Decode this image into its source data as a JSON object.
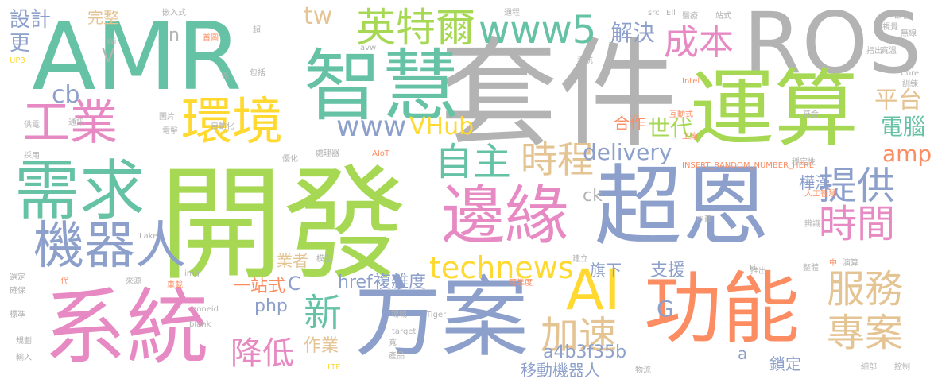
{
  "palette": {
    "green": "#66c2a5",
    "orange": "#fc8d62",
    "blue": "#8da0cb",
    "pink": "#e78ac3",
    "lime": "#a6d854",
    "yellow": "#ffd92f",
    "tan": "#e5c494",
    "gray": "#b3b3b3"
  },
  "words": [
    {
      "text": "開發",
      "color": "#a6d854"
    },
    {
      "text": "套件",
      "color": "#b3b3b3"
    },
    {
      "text": "AMR",
      "color": "#66c2a5"
    },
    {
      "text": "ROS",
      "color": "#b3b3b3"
    },
    {
      "text": "智慧",
      "color": "#66c2a5"
    },
    {
      "text": "運算",
      "color": "#a6d854"
    },
    {
      "text": "超恩",
      "color": "#8da0cb"
    },
    {
      "text": "系統",
      "color": "#e78ac3"
    },
    {
      "text": "方案",
      "color": "#8da0cb"
    },
    {
      "text": "功能",
      "color": "#fc8d62"
    },
    {
      "text": "需求",
      "color": "#66c2a5"
    },
    {
      "text": "工業",
      "color": "#e78ac3"
    },
    {
      "text": "環境",
      "color": "#ffd92f"
    },
    {
      "text": "邊緣",
      "color": "#e78ac3"
    },
    {
      "text": "機器人",
      "color": "#8da0cb"
    },
    {
      "text": "英特爾",
      "color": "#a6d854"
    },
    {
      "text": "www5",
      "color": "#66c2a5"
    },
    {
      "text": "成本",
      "color": "#e78ac3"
    },
    {
      "text": "AI",
      "color": "#ffd92f"
    },
    {
      "text": "自主",
      "color": "#66c2a5"
    },
    {
      "text": "時程",
      "color": "#e5c494"
    },
    {
      "text": "提供",
      "color": "#8da0cb"
    },
    {
      "text": "時間",
      "color": "#e78ac3"
    },
    {
      "text": "服務",
      "color": "#e5c494"
    },
    {
      "text": "專案",
      "color": "#e5c494"
    },
    {
      "text": "technews",
      "color": "#ffd92f"
    },
    {
      "text": "新",
      "color": "#66c2a5"
    },
    {
      "text": "加速",
      "color": "#e5c494"
    },
    {
      "text": "降低",
      "color": "#e78ac3"
    },
    {
      "text": "www",
      "color": "#8da0cb"
    },
    {
      "text": "VHub",
      "color": "#ffd92f"
    },
    {
      "text": "delivery",
      "color": "#8da0cb"
    },
    {
      "text": "解決",
      "color": "#8da0cb"
    },
    {
      "text": "平台",
      "color": "#e5c494"
    },
    {
      "text": "世代",
      "color": "#a6d854"
    },
    {
      "text": "合作",
      "color": "#fc8d62"
    },
    {
      "text": "電腦",
      "color": "#66c2a5"
    },
    {
      "text": "amp",
      "color": "#fc8d62"
    },
    {
      "text": "設計",
      "color": "#8da0cb"
    },
    {
      "text": "更",
      "color": "#8da0cb"
    },
    {
      "text": "完整",
      "color": "#e5c494"
    },
    {
      "text": "tw",
      "color": "#e5c494"
    },
    {
      "text": "cb",
      "color": "#8da0cb"
    },
    {
      "text": "V",
      "color": "#b3b3b3"
    },
    {
      "text": "n",
      "color": "#b3b3b3"
    },
    {
      "text": "ck",
      "color": "#b3b3b3"
    },
    {
      "text": "樺漢",
      "color": "#8da0cb"
    },
    {
      "text": "業者",
      "color": "#e5c494"
    },
    {
      "text": "一站式",
      "color": "#fc8d62"
    },
    {
      "text": "C",
      "color": "#8da0cb"
    },
    {
      "text": "php",
      "color": "#8da0cb"
    },
    {
      "text": "href",
      "color": "#8da0cb"
    },
    {
      "text": "複雜度",
      "color": "#8da0cb"
    },
    {
      "text": "旗下",
      "color": "#8da0cb"
    },
    {
      "text": "支援",
      "color": "#8da0cb"
    },
    {
      "text": "G",
      "color": "#8da0cb"
    },
    {
      "text": "作業",
      "color": "#e5c494"
    },
    {
      "text": "移動機器人",
      "color": "#8da0cb"
    },
    {
      "text": "a4b3f35b",
      "color": "#8da0cb"
    },
    {
      "text": "鎖定",
      "color": "#8da0cb"
    },
    {
      "text": "a",
      "color": "#8da0cb"
    },
    {
      "text": "嵌入式",
      "color": "#b3b3b3"
    },
    {
      "text": "超",
      "color": "#b3b3b3"
    },
    {
      "text": "Wi",
      "color": "#b3b3b3"
    },
    {
      "text": "UP3",
      "color": "#ffd92f"
    },
    {
      "text": "avw",
      "color": "#b3b3b3"
    },
    {
      "text": "導航",
      "color": "#b3b3b3"
    },
    {
      "text": "Intel",
      "color": "#fc8d62"
    },
    {
      "text": "包括",
      "color": "#b3b3b3"
    },
    {
      "text": "先",
      "color": "#b3b3b3"
    },
    {
      "text": "首圖",
      "color": "#fc8d62"
    },
    {
      "text": "通程",
      "color": "#b3b3b3"
    },
    {
      "text": "src",
      "color": "#b3b3b3"
    },
    {
      "text": "Ell",
      "color": "#b3b3b3"
    },
    {
      "text": "醫療",
      "color": "#b3b3b3"
    },
    {
      "text": "站式",
      "color": "#b3b3b3"
    },
    {
      "text": "節省",
      "color": "#b3b3b3"
    },
    {
      "text": "視覺",
      "color": "#b3b3b3"
    },
    {
      "text": "無線",
      "color": "#b3b3b3"
    },
    {
      "text": "寬溫",
      "color": "#b3b3b3"
    },
    {
      "text": "指出",
      "color": "#b3b3b3"
    },
    {
      "text": "Core",
      "color": "#b3b3b3"
    },
    {
      "text": "訓練",
      "color": "#b3b3b3"
    },
    {
      "text": "互動式",
      "color": "#fc8d62"
    },
    {
      "text": "符合",
      "color": "#b3b3b3"
    },
    {
      "text": "工廠",
      "color": "#fc8d62"
    },
    {
      "text": "供電",
      "color": "#b3b3b3"
    },
    {
      "text": "通訊",
      "color": "#b3b3b3"
    },
    {
      "text": "圖片",
      "color": "#b3b3b3"
    },
    {
      "text": "電擊",
      "color": "#b3b3b3"
    },
    {
      "text": "自動化",
      "color": "#b3b3b3"
    },
    {
      "text": "採用",
      "color": "#b3b3b3"
    },
    {
      "text": "處理器",
      "color": "#b3b3b3"
    },
    {
      "text": "AIoT",
      "color": "#fc8d62"
    },
    {
      "text": "優化",
      "color": "#b3b3b3"
    },
    {
      "text": "INSERT_RANDOM_NUMBER_HERE",
      "color": "#fc8d62"
    },
    {
      "text": "穩定性",
      "color": "#b3b3b3"
    },
    {
      "text": "人工智慧",
      "color": "#fc8d62"
    },
    {
      "text": "Lake",
      "color": "#b3b3b3"
    },
    {
      "text": "內建",
      "color": "#b3b3b3"
    },
    {
      "text": "辨識",
      "color": "#b3b3b3"
    },
    {
      "text": "模型",
      "color": "#b3b3b3"
    },
    {
      "text": "建立",
      "color": "#b3b3b3"
    },
    {
      "text": "img",
      "color": "#b3b3b3"
    },
    {
      "text": "選定",
      "color": "#b3b3b3"
    },
    {
      "text": "代",
      "color": "#fc8d62"
    },
    {
      "text": "來源",
      "color": "#b3b3b3"
    },
    {
      "text": "車載",
      "color": "#fc8d62"
    },
    {
      "text": "確保",
      "color": "#b3b3b3"
    },
    {
      "text": "可靠度",
      "color": "#fc8d62"
    },
    {
      "text": "Fi",
      "color": "#b3b3b3"
    },
    {
      "text": "推出",
      "color": "#b3b3b3"
    },
    {
      "text": "整體",
      "color": "#b3b3b3"
    },
    {
      "text": "中",
      "color": "#fc8d62"
    },
    {
      "text": "演算",
      "color": "#b3b3b3"
    },
    {
      "text": "標準",
      "color": "#b3b3b3"
    },
    {
      "text": "規劃",
      "color": "#b3b3b3"
    },
    {
      "text": "輸入",
      "color": "#b3b3b3"
    },
    {
      "text": "zoneid",
      "color": "#b3b3b3"
    },
    {
      "text": "_blank",
      "color": "#b3b3b3"
    },
    {
      "text": "場域",
      "color": "#b3b3b3"
    },
    {
      "text": "Tiger",
      "color": "#b3b3b3"
    },
    {
      "text": "target",
      "color": "#b3b3b3"
    },
    {
      "text": "寬",
      "color": "#b3b3b3"
    },
    {
      "text": "產品",
      "color": "#b3b3b3"
    },
    {
      "text": "LTE",
      "color": "#ffd92f"
    },
    {
      "text": "物流",
      "color": "#b3b3b3"
    },
    {
      "text": "細部",
      "color": "#b3b3b3"
    },
    {
      "text": "控制",
      "color": "#b3b3b3"
    }
  ]
}
